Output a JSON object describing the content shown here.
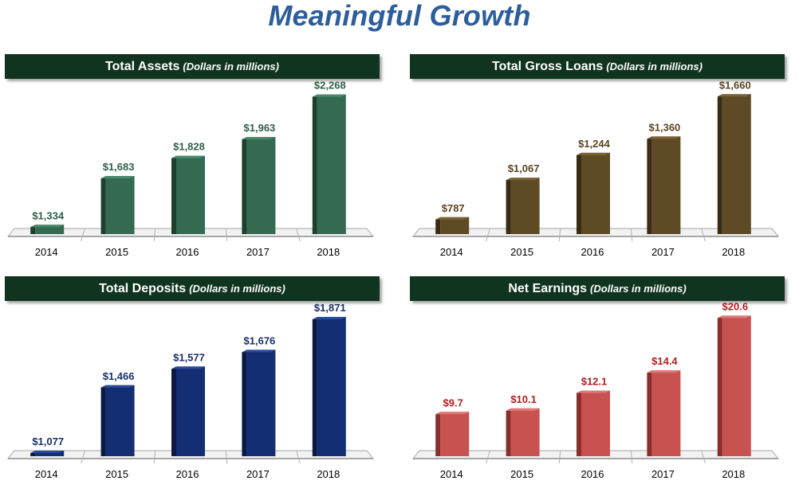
{
  "title": "Meaningful Growth",
  "chart_data": [
    {
      "type": "bar",
      "title": "Total Assets",
      "subtitle": "(Dollars in millions)",
      "categories": [
        "2014",
        "2015",
        "2016",
        "2017",
        "2018"
      ],
      "values": [
        1334,
        1683,
        1828,
        1963,
        2268
      ],
      "labels": [
        "$1,334",
        "$1,683",
        "$1,828",
        "$1,963",
        "$2,268"
      ],
      "ylim": [
        1250,
        2300
      ],
      "xlabel": "",
      "ylabel": "",
      "colors": {
        "front": "#346a52",
        "side": "#1d3f2f",
        "top": "#4a8a6c",
        "label": "#2f5f47"
      }
    },
    {
      "type": "bar",
      "title": "Total Gross Loans",
      "subtitle": "(Dollars in millions)",
      "categories": [
        "2014",
        "2015",
        "2016",
        "2017",
        "2018"
      ],
      "values": [
        787,
        1067,
        1244,
        1360,
        1660
      ],
      "labels": [
        "$787",
        "$1,067",
        "$1,244",
        "$1,360",
        "$1,660"
      ],
      "ylim": [
        650,
        1690
      ],
      "xlabel": "",
      "ylabel": "",
      "colors": {
        "front": "#5e4a25",
        "side": "#3a2c14",
        "top": "#7a6335",
        "label": "#5a4522"
      }
    },
    {
      "type": "bar",
      "title": "Total Deposits",
      "subtitle": "(Dollars in millions)",
      "categories": [
        "2014",
        "2015",
        "2016",
        "2017",
        "2018"
      ],
      "values": [
        1077,
        1466,
        1577,
        1676,
        1871
      ],
      "labels": [
        "$1,077",
        "$1,466",
        "$1,577",
        "$1,676",
        "$1,871"
      ],
      "ylim": [
        1030,
        1900
      ],
      "xlabel": "",
      "ylabel": "",
      "colors": {
        "front": "#142e73",
        "side": "#0a1a45",
        "top": "#2a4a9a",
        "label": "#1a3068"
      }
    },
    {
      "type": "bar",
      "title": "Net Earnings",
      "subtitle": "(Dollars in millions)",
      "categories": [
        "2014",
        "2015",
        "2016",
        "2017",
        "2018"
      ],
      "values": [
        9.7,
        10.1,
        12.1,
        14.4,
        20.6
      ],
      "labels": [
        "$9.7",
        "$10.1",
        "$12.1",
        "$14.4",
        "$20.6"
      ],
      "ylim": [
        4.4,
        21.0
      ],
      "xlabel": "",
      "ylabel": "",
      "colors": {
        "front": "#c85250",
        "side": "#8a2e2c",
        "top": "#dc7a78",
        "label": "#b01e1e"
      }
    }
  ]
}
